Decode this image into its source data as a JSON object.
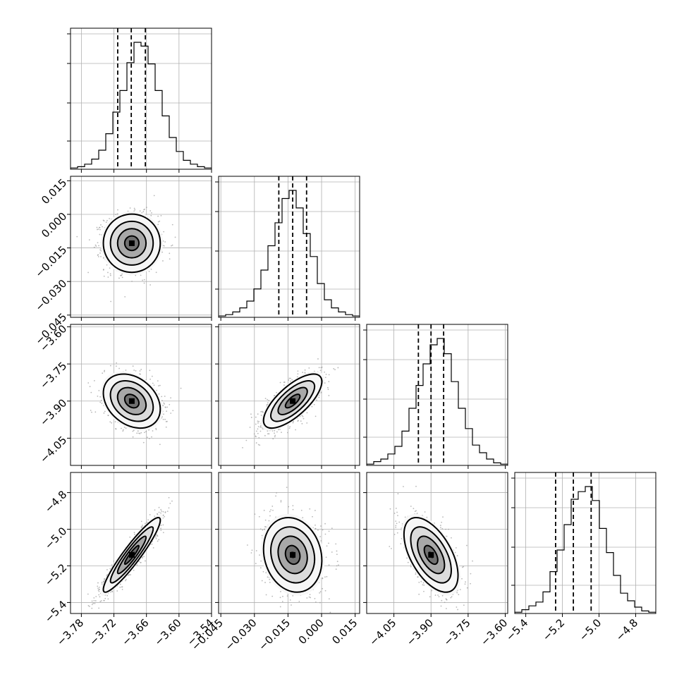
{
  "chart_data": {
    "type": "corner",
    "grid": true,
    "colors": {
      "foreground": "#000000",
      "grid": "#b0b0b0",
      "scatter": "#9a9a9a",
      "background": "#ffffff"
    },
    "parameters": [
      {
        "range": [
          -3.8,
          -3.54
        ],
        "ticks": [
          -3.78,
          -3.72,
          -3.66,
          -3.6,
          -3.54
        ],
        "tick_labels": [
          "−3.78",
          "−3.72",
          "−3.66",
          "−3.60",
          "−3.54"
        ],
        "mean": -3.687,
        "sigma": 0.025,
        "quantiles": [
          -3.713,
          -3.688,
          -3.662
        ],
        "hist": [
          1,
          2,
          4,
          8,
          15,
          28,
          45,
          62,
          84,
          100,
          97,
          83,
          62,
          42,
          25,
          14,
          7,
          4,
          2,
          1
        ]
      },
      {
        "range": [
          -0.046,
          0.017
        ],
        "ticks": [
          -0.045,
          -0.03,
          -0.015,
          0.0,
          0.015
        ],
        "tick_labels": [
          "−0.045",
          "−0.030",
          "−0.015",
          "0.000",
          "0.015"
        ],
        "mean": -0.0129,
        "sigma": 0.0062,
        "quantiles": [
          -0.0191,
          -0.0129,
          -0.0067
        ],
        "hist": [
          1,
          2,
          4,
          7,
          12,
          21,
          35,
          53,
          70,
          88,
          94,
          81,
          62,
          45,
          25,
          13,
          7,
          4,
          2,
          1
        ]
      },
      {
        "range": [
          -4.16,
          -3.59
        ],
        "ticks": [
          -4.05,
          -3.9,
          -3.75,
          -3.6
        ],
        "tick_labels": [
          "−4.05",
          "−3.90",
          "−3.75",
          "−3.60"
        ],
        "mean": -3.9,
        "sigma": 0.052,
        "quantiles": [
          -3.951,
          -3.9,
          -3.849
        ],
        "hist": [
          1,
          3,
          5,
          9,
          15,
          27,
          45,
          63,
          80,
          95,
          100,
          88,
          66,
          45,
          29,
          16,
          10,
          5,
          2,
          1
        ]
      },
      {
        "range": [
          -5.46,
          -4.69
        ],
        "ticks": [
          -5.4,
          -5.2,
          -5.0,
          -4.8
        ],
        "tick_labels": [
          "−5.4",
          "−5.2",
          "−5.0",
          "−4.8"
        ],
        "mean": -5.14,
        "sigma": 0.097,
        "quantiles": [
          -5.237,
          -5.14,
          -5.043
        ],
        "hist": [
          1,
          3,
          6,
          9,
          17,
          33,
          50,
          70,
          90,
          96,
          100,
          89,
          67,
          48,
          30,
          16,
          10,
          5,
          2,
          1
        ]
      }
    ],
    "panels": [
      {
        "row": 1,
        "col": 0,
        "correlation": 0.0
      },
      {
        "row": 2,
        "col": 0,
        "correlation": -0.3
      },
      {
        "row": 2,
        "col": 1,
        "correlation": 0.72
      },
      {
        "row": 3,
        "col": 0,
        "correlation": 0.93
      },
      {
        "row": 3,
        "col": 1,
        "correlation": -0.15
      },
      {
        "row": 3,
        "col": 2,
        "correlation": -0.55
      }
    ],
    "contour_levels_sigma": [
      0.5,
      1.0,
      1.5,
      2.0
    ]
  }
}
